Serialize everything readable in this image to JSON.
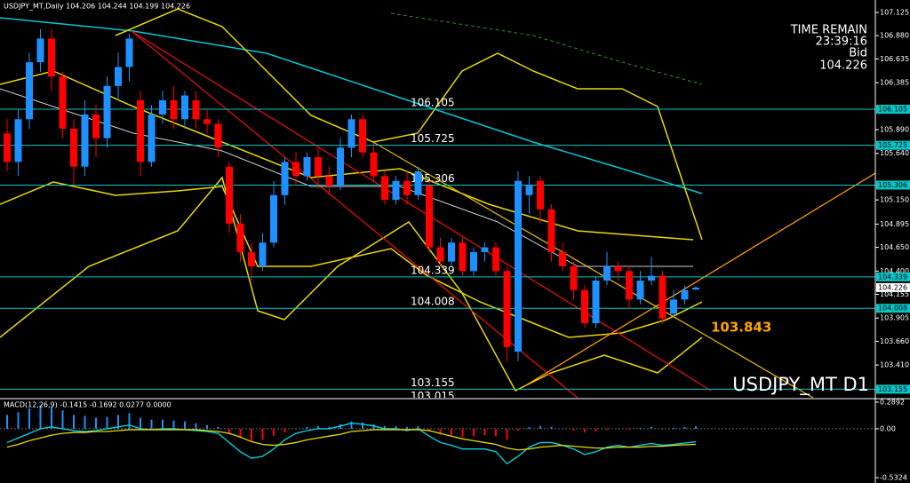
{
  "chart_data": [
    {
      "type": "candlestick",
      "title": "USDJPY_MT,Daily 104.206 104.244 104.199 104.226",
      "time_remain_label": "TIME REMAIN",
      "time_remain": "23:39:16",
      "bid_label": "Bid",
      "bid": 104.226,
      "symbol_label": "USDJPY_MT D1",
      "annotation": 103.843,
      "annotation_color": "#ffa500",
      "ylim": [
        103.065,
        107.256
      ],
      "yticks": [
        107.125,
        {
          "value": 106.88,
          "label": "106.880"
        },
        106.635,
        106.385,
        {
          "value": 105.89,
          "label": "105.890"
        },
        {
          "value": 105.64,
          "label": "105.640"
        },
        {
          "value": 105.15,
          "label": "105.150"
        },
        104.895,
        {
          "value": 104.65,
          "label": "104.650"
        },
        {
          "value": 104.4,
          "label": "104.400"
        },
        104.155,
        103.905,
        {
          "value": 103.66,
          "label": "103.660"
        },
        {
          "value": 103.41,
          "label": "103.410"
        }
      ],
      "levels": [
        106.105,
        105.725,
        105.306,
        104.339,
        104.008,
        103.155,
        103.015
      ],
      "level_color": "#00c8c8",
      "up_color": "#1e90ff",
      "down_color": "#ff0000",
      "open": [
        105.85,
        105.55,
        106.0,
        106.6,
        106.85,
        106.45,
        105.9,
        105.5,
        106.05,
        105.8,
        106.35,
        106.55,
        106.2,
        105.55,
        106.05,
        106.2,
        106.0,
        106.2,
        106.0,
        105.95,
        105.5,
        104.9,
        104.6,
        104.45,
        104.7,
        105.2,
        105.55,
        105.4,
        105.6,
        105.4,
        105.3,
        105.7,
        106.0,
        105.65,
        105.4,
        105.15,
        105.35,
        105.2,
        105.3,
        104.65,
        104.5,
        104.7,
        104.4,
        104.6,
        104.65,
        104.4,
        103.55,
        105.2,
        105.35,
        105.05,
        104.6,
        104.45,
        104.2,
        103.85,
        104.3,
        104.45,
        104.4,
        104.1,
        104.3,
        104.35,
        103.95,
        104.1,
        104.206
      ],
      "high": [
        106.0,
        106.1,
        106.7,
        106.95,
        106.95,
        106.5,
        106.0,
        106.2,
        106.15,
        106.45,
        106.7,
        106.9,
        106.3,
        106.15,
        106.3,
        106.35,
        106.3,
        106.3,
        106.1,
        106.0,
        105.55,
        105.0,
        104.7,
        104.8,
        105.35,
        105.6,
        105.65,
        105.65,
        105.7,
        105.5,
        105.8,
        106.05,
        106.05,
        105.75,
        105.45,
        105.4,
        105.45,
        105.5,
        105.35,
        104.75,
        104.75,
        104.75,
        104.65,
        104.7,
        104.7,
        104.45,
        105.45,
        105.4,
        105.4,
        105.1,
        104.7,
        104.5,
        104.25,
        104.35,
        104.6,
        104.5,
        104.45,
        104.4,
        104.55,
        104.4,
        104.2,
        104.25,
        104.244
      ],
      "low": [
        105.45,
        105.4,
        105.9,
        106.5,
        106.3,
        105.8,
        105.3,
        105.4,
        105.6,
        105.7,
        106.2,
        106.4,
        105.4,
        105.5,
        105.95,
        105.9,
        105.9,
        105.9,
        105.85,
        105.6,
        104.8,
        104.5,
        104.3,
        104.4,
        104.65,
        105.1,
        105.3,
        105.35,
        105.3,
        105.2,
        105.25,
        105.6,
        105.6,
        105.35,
        105.1,
        105.1,
        105.1,
        105.15,
        104.6,
        104.45,
        104.45,
        104.35,
        104.35,
        104.5,
        104.35,
        103.45,
        103.45,
        105.0,
        104.9,
        104.5,
        104.4,
        104.1,
        103.8,
        103.8,
        104.25,
        104.3,
        104.0,
        104.05,
        104.25,
        103.85,
        103.9,
        104.05,
        104.199
      ],
      "close": [
        105.55,
        106.0,
        106.6,
        106.85,
        106.45,
        105.9,
        105.5,
        106.05,
        105.8,
        106.35,
        106.55,
        106.85,
        105.55,
        106.05,
        106.2,
        106.0,
        106.25,
        106.0,
        105.95,
        105.7,
        104.9,
        104.6,
        104.45,
        104.7,
        105.2,
        105.55,
        105.4,
        105.6,
        105.4,
        105.3,
        105.7,
        106.0,
        105.65,
        105.4,
        105.15,
        105.35,
        105.2,
        105.45,
        104.65,
        104.5,
        104.7,
        104.4,
        104.6,
        104.65,
        104.4,
        103.6,
        105.35,
        105.3,
        105.05,
        104.6,
        104.45,
        104.2,
        103.85,
        104.3,
        104.45,
        104.4,
        104.1,
        104.3,
        104.35,
        103.9,
        104.1,
        104.2,
        104.226
      ]
    },
    {
      "type": "macd",
      "title": "MACD(12,26,9) -0.1415 -0.1692 0.0277 0.0000",
      "ylim": [
        -0.59,
        0.318
      ],
      "yticks": [
        0.2892,
        {
          "value": 0,
          "label": "0.00"
        },
        -0.5324
      ],
      "up_color": "#1e90ff",
      "down_color": "#ff0000",
      "values": [
        0.15,
        0.18,
        0.22,
        0.25,
        0.24,
        0.2,
        0.15,
        0.14,
        0.12,
        0.13,
        0.15,
        0.17,
        0.12,
        0.1,
        0.1,
        0.09,
        0.08,
        0.06,
        0.04,
        0.02,
        -0.05,
        -0.1,
        -0.14,
        -0.12,
        -0.08,
        -0.04,
        0.0,
        0.02,
        0.03,
        0.02,
        0.05,
        0.08,
        0.07,
        0.05,
        0.03,
        0.03,
        0.02,
        0.03,
        -0.03,
        -0.06,
        -0.07,
        -0.09,
        -0.08,
        -0.07,
        -0.08,
        -0.12,
        -0.02,
        0.02,
        0.03,
        0.02,
        0.0,
        -0.02,
        -0.04,
        -0.03,
        -0.01,
        0.0,
        -0.01,
        0.01,
        0.02,
        0.0,
        0.01,
        0.02,
        0.0277
      ],
      "series": [
        {
          "color": "#00d8e8",
          "values": [
            -0.15,
            -0.1,
            -0.05,
            0.0,
            0.02,
            0.0,
            -0.02,
            -0.03,
            -0.02,
            0.0,
            0.02,
            0.04,
            0.0,
            -0.01,
            0.0,
            0.0,
            -0.01,
            -0.02,
            -0.03,
            -0.05,
            -0.15,
            -0.25,
            -0.32,
            -0.3,
            -0.22,
            -0.12,
            -0.05,
            -0.02,
            0.0,
            0.0,
            0.03,
            0.06,
            0.05,
            0.03,
            0.0,
            0.0,
            -0.02,
            0.0,
            -0.08,
            -0.15,
            -0.18,
            -0.22,
            -0.22,
            -0.22,
            -0.25,
            -0.38,
            -0.3,
            -0.2,
            -0.15,
            -0.15,
            -0.18,
            -0.22,
            -0.28,
            -0.25,
            -0.2,
            -0.18,
            -0.2,
            -0.18,
            -0.16,
            -0.18,
            -0.17,
            -0.155,
            -0.1415
          ]
        },
        {
          "color": "#e8d800",
          "values": [
            -0.2,
            -0.17,
            -0.13,
            -0.1,
            -0.07,
            -0.05,
            -0.04,
            -0.04,
            -0.03,
            -0.03,
            -0.02,
            -0.01,
            -0.01,
            -0.01,
            -0.01,
            -0.01,
            -0.01,
            -0.01,
            -0.02,
            -0.03,
            -0.05,
            -0.09,
            -0.14,
            -0.17,
            -0.18,
            -0.17,
            -0.15,
            -0.12,
            -0.1,
            -0.08,
            -0.06,
            -0.03,
            -0.02,
            -0.01,
            -0.01,
            -0.01,
            -0.01,
            -0.01,
            -0.02,
            -0.05,
            -0.08,
            -0.11,
            -0.13,
            -0.15,
            -0.17,
            -0.21,
            -0.23,
            -0.22,
            -0.2,
            -0.19,
            -0.18,
            -0.19,
            -0.2,
            -0.21,
            -0.21,
            -0.2,
            -0.2,
            -0.2,
            -0.19,
            -0.19,
            -0.18,
            -0.175,
            -0.1692
          ]
        }
      ]
    }
  ]
}
